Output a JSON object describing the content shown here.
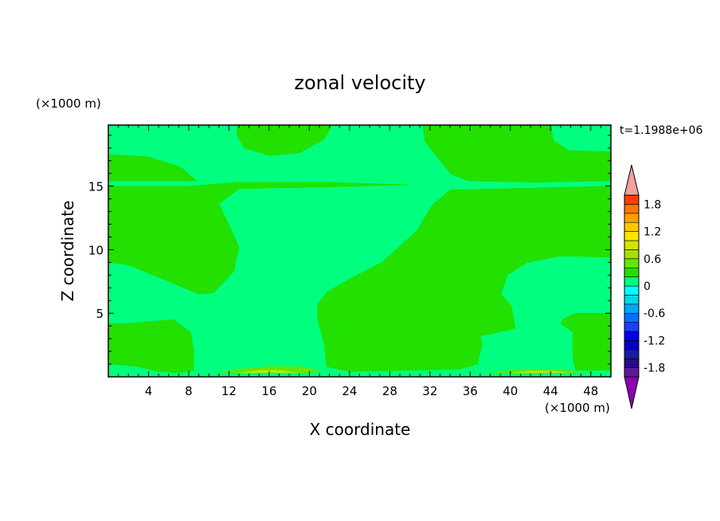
{
  "chart_data": {
    "type": "heatmap",
    "title": "zonal velocity",
    "xlabel": "X coordinate",
    "ylabel": "Z coordinate",
    "x_unit": "(×1000 m)",
    "y_unit": "(×1000 m)",
    "time_label": "t=1.1988e+06",
    "xlim": [
      0,
      50
    ],
    "ylim": [
      0,
      19.8
    ],
    "x_ticks": [
      4,
      8,
      12,
      16,
      20,
      24,
      28,
      32,
      36,
      40,
      44,
      48
    ],
    "y_ticks": [
      5,
      10,
      15
    ],
    "background_level_color": "#00ff7f",
    "colorbar": {
      "levels": [
        -2.0,
        -1.8,
        -1.6,
        -1.4,
        -1.2,
        -1.0,
        -0.8,
        -0.6,
        -0.4,
        -0.2,
        0.0,
        0.2,
        0.4,
        0.6,
        0.8,
        1.0,
        1.2,
        1.4,
        1.6,
        1.8,
        2.0
      ],
      "colors": [
        "#5a1a9c",
        "#2a0a8a",
        "#1a1aa8",
        "#0000c8",
        "#0000e6",
        "#1e3cff",
        "#0070ff",
        "#00a8ff",
        "#00d8e8",
        "#00ffff",
        "#00ff7f",
        "#22e000",
        "#66e600",
        "#aadd00",
        "#d4e600",
        "#ffe600",
        "#ffc800",
        "#ffa000",
        "#ff7800",
        "#ff3c00"
      ],
      "tick_labels": [
        "1.8",
        "1.2",
        "0.6",
        "0",
        "-0.6",
        "-1.2",
        "-1.8"
      ],
      "tick_values": [
        1.8,
        1.2,
        0.6,
        0,
        -0.6,
        -1.2,
        -1.8
      ],
      "over_color": "#f4a0a0",
      "under_color": "#8c00b4"
    },
    "regions": [
      {
        "level": "0 to 0.2",
        "color": "#22e000",
        "name": "positive-lower-left",
        "polygon": [
          [
            0,
            4.2
          ],
          [
            2,
            4.2
          ],
          [
            6.5,
            4.5
          ],
          [
            8.2,
            3.5
          ],
          [
            8.5,
            2.0
          ],
          [
            8.5,
            0.5
          ],
          [
            7,
            0.3
          ],
          [
            5,
            0.4
          ],
          [
            3,
            0.8
          ],
          [
            0,
            1.0
          ]
        ]
      },
      {
        "level": "0 to 0.2",
        "color": "#22e000",
        "name": "positive-upper-left",
        "polygon": [
          [
            0,
            17.5
          ],
          [
            4,
            17.3
          ],
          [
            7.2,
            16.5
          ],
          [
            8.8,
            15.4
          ],
          [
            0,
            15.4
          ]
        ]
      },
      {
        "level": "0 to 0.2",
        "color": "#22e000",
        "name": "positive-left-middle",
        "polygon": [
          [
            0,
            15.0
          ],
          [
            8,
            15.0
          ],
          [
            13,
            15.3
          ],
          [
            22,
            15.3
          ],
          [
            30,
            15.1
          ],
          [
            20,
            14.9
          ],
          [
            13,
            14.8
          ],
          [
            11,
            13.6
          ],
          [
            12,
            12.0
          ],
          [
            13,
            10.2
          ],
          [
            12.5,
            8.3
          ],
          [
            10.5,
            6.6
          ],
          [
            9,
            6.5
          ],
          [
            6,
            7.5
          ],
          [
            2,
            8.8
          ],
          [
            0,
            9.0
          ]
        ]
      },
      {
        "level": "0 to 0.2",
        "color": "#22e000",
        "name": "positive-top-middle",
        "polygon": [
          [
            12.8,
            19.8
          ],
          [
            22.3,
            19.8
          ],
          [
            21.5,
            18.7
          ],
          [
            19,
            17.6
          ],
          [
            16,
            17.4
          ],
          [
            13.5,
            18.0
          ],
          [
            12.8,
            19.0
          ]
        ]
      },
      {
        "level": "0 to 0.2",
        "color": "#22e000",
        "name": "positive-central",
        "polygon": [
          [
            50,
            15.0
          ],
          [
            34,
            14.7
          ],
          [
            32.2,
            13.5
          ],
          [
            30.7,
            11.5
          ],
          [
            27.2,
            9.0
          ],
          [
            24.5,
            7.9
          ],
          [
            21.8,
            6.7
          ],
          [
            20.8,
            5.7
          ],
          [
            20.8,
            4.6
          ],
          [
            21.5,
            2.5
          ],
          [
            21.7,
            0.8
          ],
          [
            24,
            0.4
          ],
          [
            30,
            0.5
          ],
          [
            35,
            0.6
          ],
          [
            36.7,
            1.0
          ],
          [
            37.2,
            2.5
          ],
          [
            37.0,
            3.2
          ],
          [
            38.3,
            3.4
          ],
          [
            40.5,
            3.8
          ],
          [
            40.1,
            5.6
          ],
          [
            39.1,
            6.5
          ],
          [
            39.7,
            8.0
          ],
          [
            41.7,
            9.0
          ],
          [
            45,
            9.5
          ],
          [
            50,
            9.4
          ]
        ]
      },
      {
        "level": "0 to 0.2",
        "color": "#22e000",
        "name": "positive-top-right",
        "polygon": [
          [
            31.3,
            19.8
          ],
          [
            44,
            19.8
          ],
          [
            44.3,
            18.6
          ],
          [
            45.8,
            17.8
          ],
          [
            50,
            17.7
          ],
          [
            50,
            15.4
          ],
          [
            42.5,
            15.3
          ],
          [
            35.8,
            15.4
          ],
          [
            34,
            16.0
          ],
          [
            31.5,
            18.5
          ]
        ]
      },
      {
        "level": "0 to 0.2",
        "color": "#22e000",
        "name": "positive-lower-right",
        "polygon": [
          [
            50,
            5.0
          ],
          [
            46.5,
            5.0
          ],
          [
            45.3,
            4.6
          ],
          [
            45,
            4.2
          ],
          [
            46.2,
            3.5
          ],
          [
            46.2,
            1.5
          ],
          [
            46.5,
            0.5
          ],
          [
            50,
            0.5
          ]
        ]
      },
      {
        "level": "0.2 to 0.4",
        "color": "#66e600",
        "name": "positive-bottom-blob-left",
        "polygon": [
          [
            11,
            0.3
          ],
          [
            13,
            0.6
          ],
          [
            16,
            0.8
          ],
          [
            19,
            0.8
          ],
          [
            21,
            0.5
          ],
          [
            20,
            0.3
          ]
        ]
      },
      {
        "level": "0.4 to 0.6",
        "color": "#c8e600",
        "name": "positive-bottom-core-left",
        "polygon": [
          [
            13,
            0.3
          ],
          [
            15,
            0.5
          ],
          [
            17,
            0.5
          ],
          [
            19,
            0.3
          ]
        ]
      },
      {
        "level": "0.2 to 0.4",
        "color": "#66e600",
        "name": "positive-bottom-blob-right",
        "polygon": [
          [
            38,
            0.3
          ],
          [
            40,
            0.5
          ],
          [
            43,
            0.6
          ],
          [
            46,
            0.5
          ],
          [
            47,
            0.3
          ]
        ]
      },
      {
        "level": "0.4 to 0.6",
        "color": "#c8e600",
        "name": "positive-bottom-core-right",
        "polygon": [
          [
            40,
            0.3
          ],
          [
            42,
            0.45
          ],
          [
            44,
            0.45
          ],
          [
            46,
            0.3
          ]
        ]
      },
      {
        "level": "-0.2 to 0",
        "color": "#00ff7f",
        "name": "bottom-strip",
        "polygon": [
          [
            0,
            0
          ],
          [
            50,
            0
          ],
          [
            50,
            0.3
          ],
          [
            0,
            0.3
          ]
        ]
      }
    ]
  }
}
